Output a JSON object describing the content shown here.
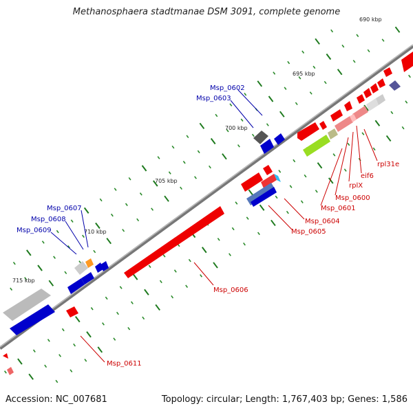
{
  "title": "Methanosphaera stadtmanae DSM 3091, complete genome",
  "footer": {
    "accession": "Accession: NC_007681",
    "summary": "Topology: circular; Length: 1,767,403 bp; Genes: 1,586"
  },
  "kbp_labels": [
    "690 kbp",
    "695 kbp",
    "700 kbp",
    "705 kbp",
    "710 kbp",
    "715 kbp"
  ],
  "gene_labels": {
    "msp0602": "Msp_0602",
    "msp0603": "Msp_0603",
    "msp0607": "Msp_0607",
    "msp0608": "Msp_0608",
    "msp0609": "Msp_0609",
    "msp0606": "Msp_0606",
    "msp0611": "Msp_0611",
    "msp0604": "Msp_0604",
    "msp0605": "Msp_0605",
    "msp0601": "Msp_0601",
    "msp0600": "Msp_0600",
    "rplx": "rplX",
    "eif6": "eif6",
    "rpl31e": "rpl31e"
  },
  "colors": {
    "forward_gene": "#ee0000",
    "reverse_gene": "#0000cc",
    "pseudo_gene": "#aaaaaa",
    "rna_gene": "#99dd22",
    "forward_label": "#cc0000",
    "reverse_label": "#0000aa",
    "backbone": "#888888",
    "tick": "#227722"
  }
}
